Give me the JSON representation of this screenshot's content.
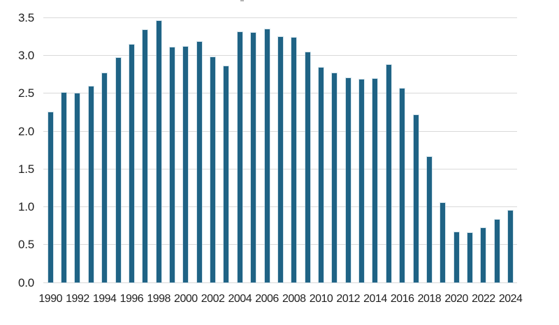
{
  "chart_data": {
    "type": "bar",
    "title": "",
    "xlabel": "",
    "ylabel": "",
    "x": [
      1990,
      1991,
      1992,
      1993,
      1994,
      1995,
      1996,
      1997,
      1998,
      1999,
      2000,
      2001,
      2002,
      2003,
      2004,
      2005,
      2006,
      2007,
      2008,
      2009,
      2010,
      2011,
      2012,
      2013,
      2014,
      2015,
      2016,
      2017,
      2018,
      2019,
      2020,
      2021,
      2022,
      2023,
      2024
    ],
    "values": [
      2.25,
      2.51,
      2.5,
      2.59,
      2.76,
      2.97,
      3.14,
      3.33,
      3.45,
      3.1,
      3.11,
      3.18,
      2.98,
      2.86,
      3.31,
      3.3,
      3.34,
      3.24,
      3.23,
      3.04,
      2.84,
      2.76,
      2.7,
      2.68,
      2.69,
      2.87,
      2.56,
      2.21,
      1.66,
      1.05,
      0.67,
      0.66,
      0.72,
      0.83,
      0.95
    ],
    "ylim": [
      0,
      3.5
    ],
    "ytick_step": 0.5,
    "ytick_labels": [
      "0.0",
      "0.5",
      "1.0",
      "1.5",
      "2.0",
      "2.5",
      "3.0",
      "3.5"
    ],
    "xtick_labels": [
      "1990",
      "1992",
      "1994",
      "1996",
      "1998",
      "2000",
      "2002",
      "2004",
      "2006",
      "2008",
      "2010",
      "2012",
      "2014",
      "2016",
      "2018",
      "2020",
      "2022",
      "2024"
    ],
    "grid": true,
    "legend": false,
    "colors": {
      "bar": "#1f6385",
      "gridline": "#d9d9d9",
      "tick_label": "#1f1f1f",
      "background": "#ffffff"
    }
  }
}
